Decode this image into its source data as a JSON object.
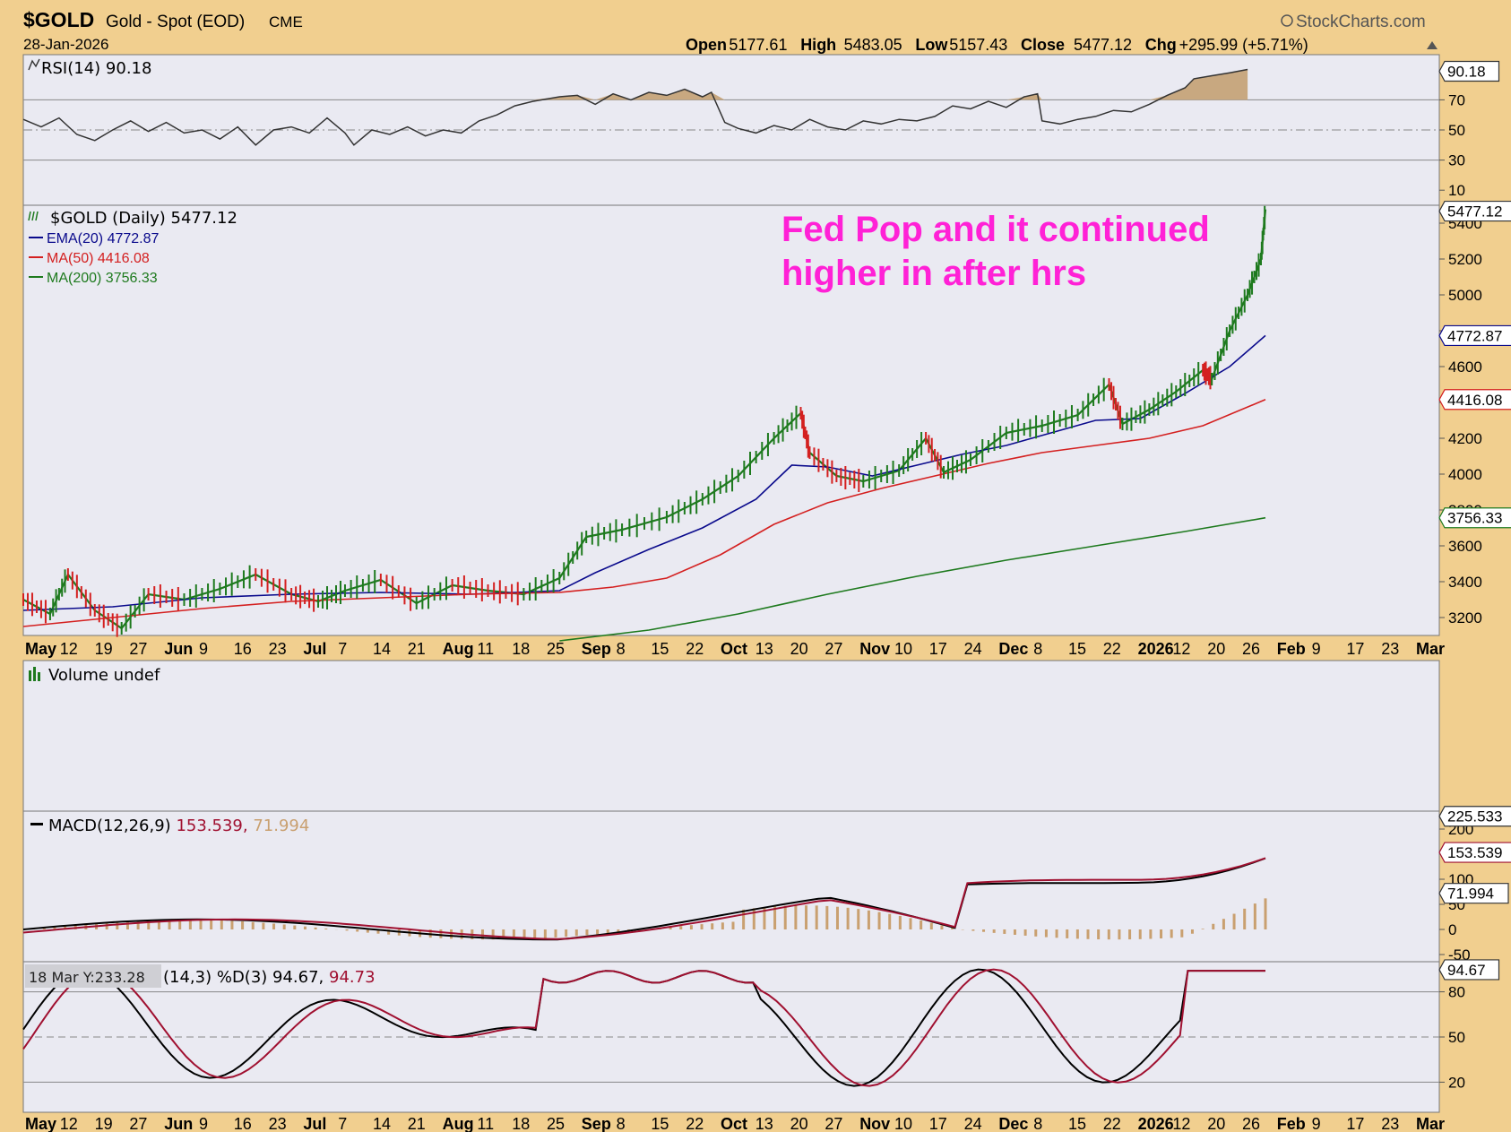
{
  "header": {
    "symbol": "$GOLD",
    "name": "Gold - Spot (EOD)",
    "exchange": "CME",
    "date": "28-Jan-2026",
    "brand": "StockCharts.com",
    "ohlc": [
      {
        "label": "Open",
        "value": "5177.61"
      },
      {
        "label": "High",
        "value": "5483.05"
      },
      {
        "label": "Low",
        "value": "5157.43"
      },
      {
        "label": "Close",
        "value": "5477.12"
      },
      {
        "label": "Chg",
        "value": "+295.99 (+5.71%)"
      }
    ],
    "up_icon": "up-triangle-icon"
  },
  "x_axis_labels": [
    {
      "text": "May",
      "bold": true
    },
    {
      "text": "12"
    },
    {
      "text": "19"
    },
    {
      "text": "27"
    },
    {
      "text": "Jun",
      "bold": true
    },
    {
      "text": "9"
    },
    {
      "text": "16"
    },
    {
      "text": "23"
    },
    {
      "text": "Jul",
      "bold": true
    },
    {
      "text": "7"
    },
    {
      "text": "14"
    },
    {
      "text": "21"
    },
    {
      "text": "Aug",
      "bold": true
    },
    {
      "text": "11"
    },
    {
      "text": "18"
    },
    {
      "text": "25"
    },
    {
      "text": "Sep",
      "bold": true
    },
    {
      "text": "8"
    },
    {
      "text": "15"
    },
    {
      "text": "22"
    },
    {
      "text": "Oct",
      "bold": true
    },
    {
      "text": "13"
    },
    {
      "text": "20"
    },
    {
      "text": "27"
    },
    {
      "text": "Nov",
      "bold": true
    },
    {
      "text": "10"
    },
    {
      "text": "17"
    },
    {
      "text": "24"
    },
    {
      "text": "Dec",
      "bold": true
    },
    {
      "text": "8"
    },
    {
      "text": "15"
    },
    {
      "text": "22"
    },
    {
      "text": "2026",
      "bold": true
    },
    {
      "text": "12"
    },
    {
      "text": "20"
    },
    {
      "text": "26"
    },
    {
      "text": "Feb",
      "bold": true
    },
    {
      "text": "9"
    },
    {
      "text": "17"
    },
    {
      "text": "23"
    },
    {
      "text": "Mar",
      "bold": true
    }
  ],
  "panels": {
    "rsi": {
      "title": "RSI(14) 90.18",
      "current_label": "90.18",
      "ticks": [
        "70",
        "50",
        "30",
        "10"
      ],
      "current": 90.18,
      "points": [
        [
          0,
          57
        ],
        [
          0.02,
          52
        ],
        [
          0.04,
          58
        ],
        [
          0.06,
          47
        ],
        [
          0.08,
          43
        ],
        [
          0.1,
          50
        ],
        [
          0.12,
          56
        ],
        [
          0.14,
          49
        ],
        [
          0.16,
          55
        ],
        [
          0.18,
          48
        ],
        [
          0.2,
          50
        ],
        [
          0.22,
          44
        ],
        [
          0.24,
          52
        ],
        [
          0.26,
          40
        ],
        [
          0.28,
          50
        ],
        [
          0.3,
          52
        ],
        [
          0.32,
          48
        ],
        [
          0.34,
          58
        ],
        [
          0.36,
          48
        ],
        [
          0.37,
          40
        ],
        [
          0.39,
          50
        ],
        [
          0.41,
          47
        ],
        [
          0.43,
          52
        ],
        [
          0.45,
          46
        ],
        [
          0.47,
          50
        ],
        [
          0.49,
          48
        ],
        [
          0.51,
          56
        ],
        [
          0.53,
          60
        ],
        [
          0.55,
          66
        ],
        [
          0.57,
          69
        ],
        [
          0.6,
          72
        ],
        [
          0.62,
          73
        ],
        [
          0.64,
          67
        ],
        [
          0.66,
          74
        ],
        [
          0.68,
          70
        ],
        [
          0.7,
          75
        ],
        [
          0.72,
          73
        ],
        [
          0.74,
          77
        ],
        [
          0.76,
          72
        ],
        [
          0.77,
          75
        ],
        [
          0.785,
          55
        ],
        [
          0.8,
          51
        ],
        [
          0.82,
          48
        ],
        [
          0.84,
          53
        ],
        [
          0.86,
          50
        ],
        [
          0.88,
          57
        ],
        [
          0.9,
          52
        ],
        [
          0.92,
          50
        ],
        [
          0.94,
          56
        ],
        [
          0.96,
          54
        ],
        [
          0.98,
          57
        ],
        [
          1.0,
          56
        ],
        [
          1.02,
          59
        ],
        [
          1.04,
          66
        ],
        [
          1.06,
          64
        ],
        [
          1.08,
          69
        ],
        [
          1.1,
          65
        ],
        [
          1.12,
          72
        ],
        [
          1.135,
          74
        ],
        [
          1.14,
          56
        ],
        [
          1.16,
          54
        ],
        [
          1.18,
          57
        ],
        [
          1.2,
          59
        ],
        [
          1.22,
          63
        ],
        [
          1.24,
          62
        ],
        [
          1.26,
          67
        ],
        [
          1.28,
          73
        ],
        [
          1.3,
          78
        ],
        [
          1.31,
          84
        ],
        [
          1.33,
          86
        ],
        [
          1.35,
          88
        ],
        [
          1.37,
          90.18
        ]
      ]
    },
    "price": {
      "title": "$GOLD (Daily) 5477.12",
      "current_label": "5477.12",
      "ticks": [
        "5400",
        "5200",
        "5000",
        "4800",
        "4600",
        "4400",
        "4200",
        "4000",
        "3800",
        "3600",
        "3400",
        "3200"
      ],
      "legend": [
        {
          "text": "EMA(20) 4772.87",
          "color": "#0a0a8c",
          "label": "4772.87",
          "value": 4772.87
        },
        {
          "text": "MA(50) 4416.08",
          "color": "#d42020",
          "label": "4416.08",
          "value": 4416.08
        },
        {
          "text": "MA(200) 3756.33",
          "color": "#1e7a1e",
          "label": "3756.33",
          "value": 3756.33
        }
      ],
      "annotation": [
        "Fed Pop and it continued",
        "higher in after hrs"
      ]
    },
    "volume": {
      "title": "Volume undef"
    },
    "macd": {
      "title_prefix": "MACD(12,26,9) ",
      "macd_value": "225.533,",
      "signal_value": " 153.539,",
      "hist_value": " 71.994",
      "current_labels": [
        "225.533",
        "153.539",
        "71.994"
      ],
      "ticks": [
        "200",
        "100",
        "50",
        "0",
        "-50"
      ]
    },
    "stoch": {
      "title_tail": "(14,3) %D(3) 94.67,",
      "d_value": " 94.73",
      "tooltip": "18 Mar Y:233.28",
      "current_label": "94.67",
      "ticks": [
        "80",
        "50",
        "20"
      ]
    }
  },
  "chart_data": {
    "type": "line",
    "title": "$GOLD (Daily) 5477.12",
    "x": [
      "May",
      "Jun",
      "Jul",
      "Aug",
      "Sep",
      "Oct",
      "Nov",
      "Dec",
      "2026",
      "Feb",
      "Mar"
    ],
    "ylim": [
      3100,
      5500
    ],
    "series": [
      {
        "name": "$GOLD",
        "points": [
          [
            0,
            3300
          ],
          [
            0.03,
            3220
          ],
          [
            0.05,
            3440
          ],
          [
            0.08,
            3240
          ],
          [
            0.11,
            3140
          ],
          [
            0.14,
            3330
          ],
          [
            0.18,
            3300
          ],
          [
            0.22,
            3360
          ],
          [
            0.26,
            3440
          ],
          [
            0.3,
            3330
          ],
          [
            0.33,
            3290
          ],
          [
            0.36,
            3350
          ],
          [
            0.4,
            3410
          ],
          [
            0.44,
            3280
          ],
          [
            0.48,
            3380
          ],
          [
            0.52,
            3350
          ],
          [
            0.56,
            3330
          ],
          [
            0.6,
            3420
          ],
          [
            0.63,
            3650
          ],
          [
            0.67,
            3690
          ],
          [
            0.72,
            3760
          ],
          [
            0.76,
            3860
          ],
          [
            0.8,
            3990
          ],
          [
            0.84,
            4200
          ],
          [
            0.87,
            4340
          ],
          [
            0.88,
            4120
          ],
          [
            0.91,
            3990
          ],
          [
            0.94,
            3960
          ],
          [
            0.98,
            4020
          ],
          [
            1.01,
            4200
          ],
          [
            1.03,
            4010
          ],
          [
            1.06,
            4080
          ],
          [
            1.1,
            4230
          ],
          [
            1.14,
            4270
          ],
          [
            1.18,
            4330
          ],
          [
            1.215,
            4500
          ],
          [
            1.23,
            4280
          ],
          [
            1.26,
            4360
          ],
          [
            1.29,
            4460
          ],
          [
            1.32,
            4580
          ],
          [
            1.33,
            4530
          ],
          [
            1.35,
            4800
          ],
          [
            1.37,
            5000
          ],
          [
            1.385,
            5200
          ],
          [
            1.39,
            5477.12
          ]
        ]
      },
      {
        "name": "EMA(20) 4772.87",
        "points": [
          [
            0,
            3240
          ],
          [
            0.1,
            3260
          ],
          [
            0.2,
            3310
          ],
          [
            0.3,
            3330
          ],
          [
            0.4,
            3340
          ],
          [
            0.5,
            3330
          ],
          [
            0.6,
            3350
          ],
          [
            0.64,
            3450
          ],
          [
            0.7,
            3580
          ],
          [
            0.76,
            3700
          ],
          [
            0.82,
            3860
          ],
          [
            0.86,
            4050
          ],
          [
            0.9,
            4040
          ],
          [
            0.95,
            3990
          ],
          [
            1.0,
            4050
          ],
          [
            1.05,
            4110
          ],
          [
            1.1,
            4160
          ],
          [
            1.15,
            4230
          ],
          [
            1.2,
            4300
          ],
          [
            1.25,
            4310
          ],
          [
            1.3,
            4450
          ],
          [
            1.35,
            4600
          ],
          [
            1.39,
            4772.87
          ]
        ]
      },
      {
        "name": "MA(50) 4416.08",
        "points": [
          [
            0,
            3150
          ],
          [
            0.1,
            3200
          ],
          [
            0.2,
            3250
          ],
          [
            0.3,
            3290
          ],
          [
            0.4,
            3310
          ],
          [
            0.5,
            3330
          ],
          [
            0.6,
            3340
          ],
          [
            0.66,
            3370
          ],
          [
            0.72,
            3420
          ],
          [
            0.78,
            3550
          ],
          [
            0.84,
            3720
          ],
          [
            0.9,
            3840
          ],
          [
            0.96,
            3920
          ],
          [
            1.02,
            3990
          ],
          [
            1.08,
            4060
          ],
          [
            1.14,
            4120
          ],
          [
            1.2,
            4160
          ],
          [
            1.26,
            4200
          ],
          [
            1.32,
            4270
          ],
          [
            1.39,
            4416.08
          ]
        ]
      },
      {
        "name": "MA(200) 3756.33",
        "points": [
          [
            0.6,
            3070
          ],
          [
            0.7,
            3130
          ],
          [
            0.8,
            3220
          ],
          [
            0.9,
            3330
          ],
          [
            1.0,
            3430
          ],
          [
            1.1,
            3520
          ],
          [
            1.2,
            3600
          ],
          [
            1.3,
            3680
          ],
          [
            1.39,
            3756.33
          ]
        ]
      }
    ],
    "legend_position": "top-left",
    "grid": false
  }
}
